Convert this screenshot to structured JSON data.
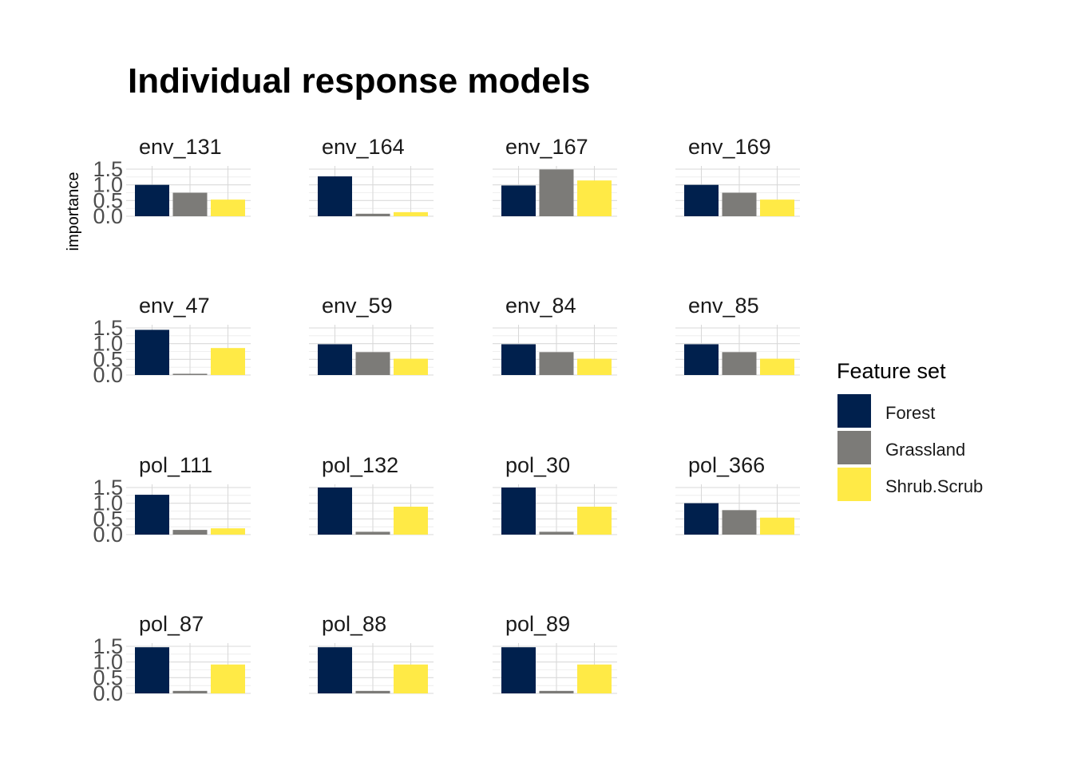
{
  "chart_data": {
    "type": "bar",
    "title": "Individual response models",
    "ylabel": "importance",
    "xlabel": "",
    "ylim": [
      0,
      1.5
    ],
    "yticks": [
      "0.0",
      "0.5",
      "1.0",
      "1.5"
    ],
    "grid": true,
    "legend": {
      "title": "Feature set",
      "position": "right"
    },
    "categories": [
      "Forest",
      "Grassland",
      "Shrub.Scrub"
    ],
    "colors": {
      "Forest": "#00204d",
      "Grassland": "#7c7b78",
      "Shrub.Scrub": "#ffea46"
    },
    "facets": [
      {
        "name": "env_131",
        "values": [
          1.0,
          0.75,
          0.53
        ]
      },
      {
        "name": "env_164",
        "values": [
          1.27,
          0.08,
          0.13
        ]
      },
      {
        "name": "env_167",
        "values": [
          0.98,
          1.49,
          1.14
        ]
      },
      {
        "name": "env_169",
        "values": [
          1.0,
          0.75,
          0.53
        ]
      },
      {
        "name": "env_47",
        "values": [
          1.44,
          0.04,
          0.86
        ]
      },
      {
        "name": "env_59",
        "values": [
          0.98,
          0.73,
          0.52
        ]
      },
      {
        "name": "env_84",
        "values": [
          0.98,
          0.73,
          0.52
        ]
      },
      {
        "name": "env_85",
        "values": [
          0.98,
          0.73,
          0.52
        ]
      },
      {
        "name": "pol_111",
        "values": [
          1.27,
          0.15,
          0.2
        ]
      },
      {
        "name": "pol_132",
        "values": [
          1.5,
          0.09,
          0.89
        ]
      },
      {
        "name": "pol_30",
        "values": [
          1.5,
          0.09,
          0.89
        ]
      },
      {
        "name": "pol_366",
        "values": [
          1.0,
          0.78,
          0.54
        ]
      },
      {
        "name": "pol_87",
        "values": [
          1.47,
          0.08,
          0.92
        ]
      },
      {
        "name": "pol_88",
        "values": [
          1.47,
          0.08,
          0.92
        ]
      },
      {
        "name": "pol_89",
        "values": [
          1.47,
          0.08,
          0.92
        ]
      }
    ]
  }
}
